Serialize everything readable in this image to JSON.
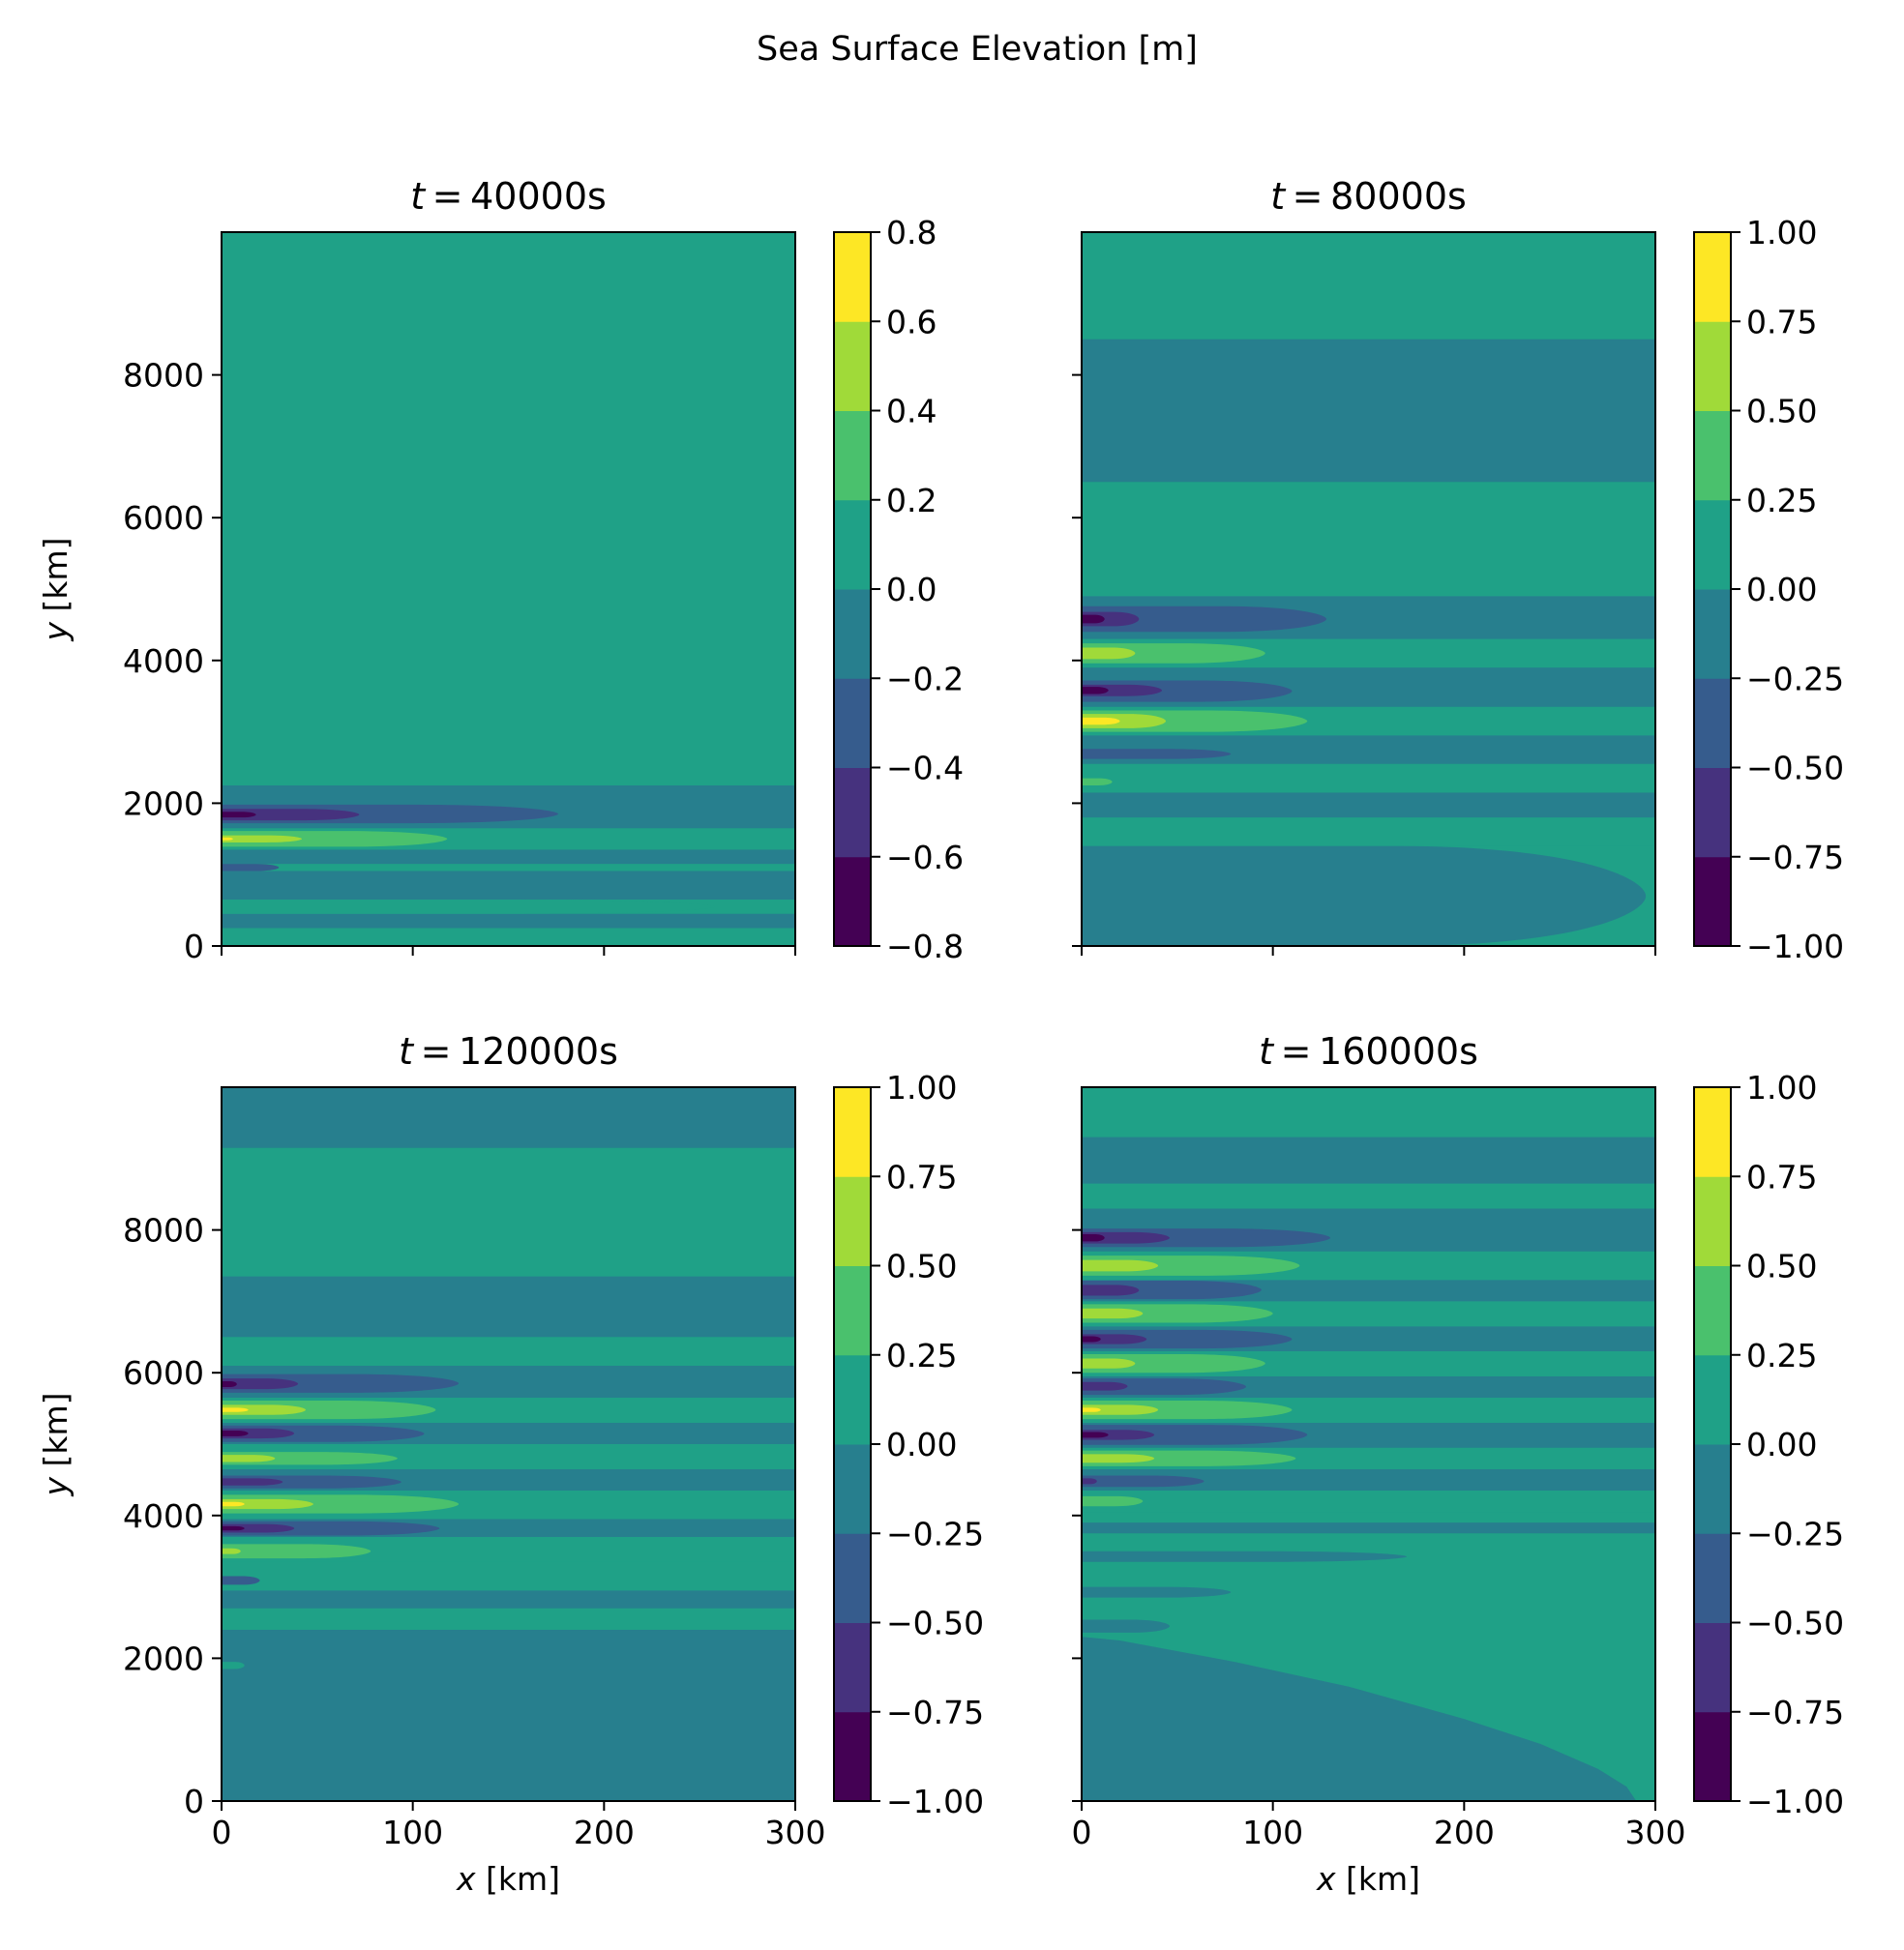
{
  "figure": {
    "suptitle": "Sea Surface Elevation [m]"
  },
  "chart_data": [
    {
      "type": "contour",
      "title_var": "t",
      "title_value": "40000s",
      "xlabel_var": "x",
      "xlabel_unit": "[km]",
      "ylabel_var": "y",
      "ylabel_unit": "[km]",
      "xlim": [
        0,
        300
      ],
      "ylim": [
        0,
        10000
      ],
      "xticks": [
        "0",
        "100",
        "200",
        "300"
      ],
      "yticks": [
        "0",
        "2000",
        "4000",
        "6000",
        "8000"
      ],
      "show_xticklabels": false,
      "show_yticklabels": true,
      "show_xlabel": false,
      "show_ylabel": true,
      "colorbar": {
        "levels": [
          -0.8,
          -0.6,
          -0.4,
          -0.2,
          0.0,
          0.2,
          0.4,
          0.6,
          0.8
        ],
        "ticks": [
          "−0.8",
          "−0.6",
          "−0.4",
          "−0.2",
          "0.0",
          "0.2",
          "0.4",
          "0.6",
          "0.8"
        ],
        "colors": [
          "#440154",
          "#46327e",
          "#365c8d",
          "#277f8e",
          "#1fa187",
          "#4ac16d",
          "#a0da39",
          "#fde725"
        ]
      },
      "background_color": "#1fa187",
      "bands": [
        {
          "y0": 0,
          "y1": 300,
          "x_end": 300,
          "color": "#1fa187"
        },
        {
          "y0": 250,
          "y1": 450,
          "x_end": 300,
          "color": "#277f8e"
        },
        {
          "y0": 450,
          "y1": 650,
          "x_end": 258,
          "color": "#1fa187"
        },
        {
          "y0": 650,
          "y1": 1050,
          "x_end": 300,
          "color": "#277f8e"
        },
        {
          "y0": 1050,
          "y1": 1150,
          "x_end": 30,
          "color": "#365c8d"
        },
        {
          "y0": 1150,
          "y1": 1350,
          "x_end": 300,
          "color": "#277f8e"
        },
        {
          "y0": 1350,
          "y1": 1650,
          "x_end": 300,
          "color": "#1fa187"
        },
        {
          "y0": 1390,
          "y1": 1610,
          "x_end": 118,
          "color": "#4ac16d"
        },
        {
          "y0": 1450,
          "y1": 1550,
          "x_end": 42,
          "color": "#a0da39"
        },
        {
          "y0": 1480,
          "y1": 1520,
          "x_end": 6,
          "color": "#fde725"
        },
        {
          "y0": 1650,
          "y1": 2250,
          "x_end": 300,
          "color": "#277f8e"
        },
        {
          "y0": 1720,
          "y1": 1980,
          "x_end": 176,
          "color": "#365c8d"
        },
        {
          "y0": 1760,
          "y1": 1920,
          "x_end": 72,
          "color": "#46327e"
        },
        {
          "y0": 1800,
          "y1": 1880,
          "x_end": 18,
          "color": "#440154"
        }
      ]
    },
    {
      "type": "contour",
      "title_var": "t",
      "title_value": "80000s",
      "xlabel_var": "x",
      "xlabel_unit": "[km]",
      "ylabel_var": "y",
      "ylabel_unit": "[km]",
      "xlim": [
        0,
        300
      ],
      "ylim": [
        0,
        10000
      ],
      "xticks": [
        "0",
        "100",
        "200",
        "300"
      ],
      "yticks": [
        "0",
        "2000",
        "4000",
        "6000",
        "8000"
      ],
      "show_xticklabels": false,
      "show_yticklabels": false,
      "show_xlabel": false,
      "show_ylabel": false,
      "colorbar": {
        "levels": [
          -1.0,
          -0.75,
          -0.5,
          -0.25,
          0.0,
          0.25,
          0.5,
          0.75,
          1.0
        ],
        "ticks": [
          "−1.00",
          "−0.75",
          "−0.50",
          "−0.25",
          "0.00",
          "0.25",
          "0.50",
          "0.75",
          "1.00"
        ],
        "colors": [
          "#440154",
          "#46327e",
          "#365c8d",
          "#277f8e",
          "#1fa187",
          "#4ac16d",
          "#a0da39",
          "#fde725"
        ]
      },
      "background_color": "#1fa187",
      "bands": [
        {
          "y0": 0,
          "y1": 1400,
          "x_end": 295,
          "color": "#277f8e"
        },
        {
          "y0": 1400,
          "y1": 1800,
          "x_end": 300,
          "color": "#1fa187"
        },
        {
          "y0": 1800,
          "y1": 2150,
          "x_end": 300,
          "color": "#277f8e"
        },
        {
          "y0": 2150,
          "y1": 2550,
          "x_end": 300,
          "color": "#1fa187"
        },
        {
          "y0": 2250,
          "y1": 2350,
          "x_end": 16,
          "color": "#4ac16d"
        },
        {
          "y0": 2550,
          "y1": 2950,
          "x_end": 300,
          "color": "#277f8e"
        },
        {
          "y0": 2620,
          "y1": 2760,
          "x_end": 78,
          "color": "#365c8d"
        },
        {
          "y0": 2950,
          "y1": 3350,
          "x_end": 300,
          "color": "#1fa187"
        },
        {
          "y0": 3000,
          "y1": 3300,
          "x_end": 118,
          "color": "#4ac16d"
        },
        {
          "y0": 3050,
          "y1": 3250,
          "x_end": 44,
          "color": "#a0da39"
        },
        {
          "y0": 3100,
          "y1": 3200,
          "x_end": 20,
          "color": "#fde725"
        },
        {
          "y0": 3350,
          "y1": 3900,
          "x_end": 300,
          "color": "#277f8e"
        },
        {
          "y0": 3420,
          "y1": 3720,
          "x_end": 110,
          "color": "#365c8d"
        },
        {
          "y0": 3500,
          "y1": 3660,
          "x_end": 42,
          "color": "#46327e"
        },
        {
          "y0": 3530,
          "y1": 3630,
          "x_end": 14,
          "color": "#440154"
        },
        {
          "y0": 3900,
          "y1": 4300,
          "x_end": 300,
          "color": "#1fa187"
        },
        {
          "y0": 3960,
          "y1": 4240,
          "x_end": 96,
          "color": "#4ac16d"
        },
        {
          "y0": 4020,
          "y1": 4180,
          "x_end": 28,
          "color": "#a0da39"
        },
        {
          "y0": 4300,
          "y1": 4900,
          "x_end": 300,
          "color": "#277f8e"
        },
        {
          "y0": 4400,
          "y1": 4760,
          "x_end": 128,
          "color": "#365c8d"
        },
        {
          "y0": 4480,
          "y1": 4680,
          "x_end": 30,
          "color": "#46327e"
        },
        {
          "y0": 4520,
          "y1": 4640,
          "x_end": 12,
          "color": "#440154"
        },
        {
          "y0": 6500,
          "y1": 8500,
          "x_end": 300,
          "color": "#277f8e"
        }
      ]
    },
    {
      "type": "contour",
      "title_var": "t",
      "title_value": "120000s",
      "xlabel_var": "x",
      "xlabel_unit": "[km]",
      "ylabel_var": "y",
      "ylabel_unit": "[km]",
      "xlim": [
        0,
        300
      ],
      "ylim": [
        0,
        10000
      ],
      "xticks": [
        "0",
        "100",
        "200",
        "300"
      ],
      "yticks": [
        "0",
        "2000",
        "4000",
        "6000",
        "8000"
      ],
      "show_xticklabels": true,
      "show_yticklabels": true,
      "show_xlabel": true,
      "show_ylabel": true,
      "colorbar": {
        "levels": [
          -1.0,
          -0.75,
          -0.5,
          -0.25,
          0.0,
          0.25,
          0.5,
          0.75,
          1.0
        ],
        "ticks": [
          "−1.00",
          "−0.75",
          "−0.50",
          "−0.25",
          "0.00",
          "0.25",
          "0.50",
          "0.75",
          "1.00"
        ],
        "colors": [
          "#440154",
          "#46327e",
          "#365c8d",
          "#277f8e",
          "#1fa187",
          "#4ac16d",
          "#a0da39",
          "#fde725"
        ]
      },
      "background_color": "#1fa187",
      "bands": [
        {
          "y0": 0,
          "y1": 2400,
          "x_end": 300,
          "color": "#277f8e"
        },
        {
          "y0": 1850,
          "y1": 1950,
          "x_end": 12,
          "color": "#1fa187"
        },
        {
          "y0": 2400,
          "y1": 2700,
          "x_end": 300,
          "color": "#1fa187"
        },
        {
          "y0": 2700,
          "y1": 2950,
          "x_end": 300,
          "color": "#277f8e"
        },
        {
          "y0": 2950,
          "y1": 3350,
          "x_end": 300,
          "color": "#1fa187"
        },
        {
          "y0": 3030,
          "y1": 3150,
          "x_end": 20,
          "color": "#365c8d"
        },
        {
          "y0": 3350,
          "y1": 3700,
          "x_end": 300,
          "color": "#1fa187"
        },
        {
          "y0": 3400,
          "y1": 3600,
          "x_end": 78,
          "color": "#4ac16d"
        },
        {
          "y0": 3460,
          "y1": 3540,
          "x_end": 10,
          "color": "#a0da39"
        },
        {
          "y0": 3700,
          "y1": 3950,
          "x_end": 300,
          "color": "#277f8e"
        },
        {
          "y0": 3720,
          "y1": 3920,
          "x_end": 114,
          "color": "#365c8d"
        },
        {
          "y0": 3760,
          "y1": 3880,
          "x_end": 38,
          "color": "#46327e"
        },
        {
          "y0": 3790,
          "y1": 3850,
          "x_end": 12,
          "color": "#440154"
        },
        {
          "y0": 3950,
          "y1": 4350,
          "x_end": 300,
          "color": "#1fa187"
        },
        {
          "y0": 4030,
          "y1": 4290,
          "x_end": 124,
          "color": "#4ac16d"
        },
        {
          "y0": 4090,
          "y1": 4230,
          "x_end": 48,
          "color": "#a0da39"
        },
        {
          "y0": 4130,
          "y1": 4190,
          "x_end": 12,
          "color": "#fde725"
        },
        {
          "y0": 4350,
          "y1": 4650,
          "x_end": 300,
          "color": "#277f8e"
        },
        {
          "y0": 4380,
          "y1": 4560,
          "x_end": 94,
          "color": "#365c8d"
        },
        {
          "y0": 4420,
          "y1": 4520,
          "x_end": 32,
          "color": "#46327e"
        },
        {
          "y0": 4650,
          "y1": 5000,
          "x_end": 300,
          "color": "#1fa187"
        },
        {
          "y0": 4710,
          "y1": 4890,
          "x_end": 92,
          "color": "#4ac16d"
        },
        {
          "y0": 4750,
          "y1": 4850,
          "x_end": 28,
          "color": "#a0da39"
        },
        {
          "y0": 5000,
          "y1": 5300,
          "x_end": 300,
          "color": "#277f8e"
        },
        {
          "y0": 5030,
          "y1": 5260,
          "x_end": 106,
          "color": "#365c8d"
        },
        {
          "y0": 5080,
          "y1": 5220,
          "x_end": 38,
          "color": "#46327e"
        },
        {
          "y0": 5110,
          "y1": 5190,
          "x_end": 14,
          "color": "#440154"
        },
        {
          "y0": 5300,
          "y1": 5650,
          "x_end": 300,
          "color": "#1fa187"
        },
        {
          "y0": 5350,
          "y1": 5610,
          "x_end": 112,
          "color": "#4ac16d"
        },
        {
          "y0": 5410,
          "y1": 5550,
          "x_end": 44,
          "color": "#a0da39"
        },
        {
          "y0": 5450,
          "y1": 5510,
          "x_end": 14,
          "color": "#fde725"
        },
        {
          "y0": 5650,
          "y1": 6100,
          "x_end": 300,
          "color": "#277f8e"
        },
        {
          "y0": 5720,
          "y1": 5980,
          "x_end": 124,
          "color": "#365c8d"
        },
        {
          "y0": 5770,
          "y1": 5920,
          "x_end": 40,
          "color": "#46327e"
        },
        {
          "y0": 5800,
          "y1": 5880,
          "x_end": 8,
          "color": "#440154"
        },
        {
          "y0": 6100,
          "y1": 6500,
          "x_end": 300,
          "color": "#1fa187"
        },
        {
          "y0": 6500,
          "y1": 7350,
          "x_end": 300,
          "color": "#277f8e"
        },
        {
          "y0": 9150,
          "y1": 10000,
          "x_end": 300,
          "color": "#277f8e"
        }
      ]
    },
    {
      "type": "contour",
      "title_var": "t",
      "title_value": "160000s",
      "xlabel_var": "x",
      "xlabel_unit": "[km]",
      "ylabel_var": "y",
      "ylabel_unit": "[km]",
      "xlim": [
        0,
        300
      ],
      "ylim": [
        0,
        10000
      ],
      "xticks": [
        "0",
        "100",
        "200",
        "300"
      ],
      "yticks": [
        "0",
        "2000",
        "4000",
        "6000",
        "8000"
      ],
      "show_xticklabels": true,
      "show_yticklabels": false,
      "show_xlabel": true,
      "show_ylabel": false,
      "colorbar": {
        "levels": [
          -1.0,
          -0.75,
          -0.5,
          -0.25,
          0.0,
          0.25,
          0.5,
          0.75,
          1.0
        ],
        "ticks": [
          "−1.00",
          "−0.75",
          "−0.50",
          "−0.25",
          "0.00",
          "0.25",
          "0.50",
          "0.75",
          "1.00"
        ],
        "colors": [
          "#440154",
          "#46327e",
          "#365c8d",
          "#277f8e",
          "#1fa187",
          "#4ac16d",
          "#a0da39",
          "#fde725"
        ]
      },
      "background_color": "#1fa187",
      "wedge": {
        "color": "#277f8e",
        "points": [
          [
            0,
            0
          ],
          [
            290,
            0
          ],
          [
            285,
            200
          ],
          [
            270,
            450
          ],
          [
            240,
            800
          ],
          [
            200,
            1150
          ],
          [
            140,
            1600
          ],
          [
            80,
            1950
          ],
          [
            20,
            2250
          ],
          [
            0,
            2300
          ]
        ]
      },
      "bands": [
        {
          "y0": 2360,
          "y1": 2540,
          "x_end": 46,
          "color": "#277f8e"
        },
        {
          "y0": 2850,
          "y1": 3000,
          "x_end": 78,
          "color": "#277f8e"
        },
        {
          "y0": 3350,
          "y1": 3500,
          "x_end": 170,
          "color": "#277f8e"
        },
        {
          "y0": 3750,
          "y1": 3900,
          "x_end": 300,
          "color": "#277f8e"
        },
        {
          "y0": 4050,
          "y1": 4350,
          "x_end": 300,
          "color": "#1fa187"
        },
        {
          "y0": 4130,
          "y1": 4270,
          "x_end": 32,
          "color": "#4ac16d"
        },
        {
          "y0": 4350,
          "y1": 4650,
          "x_end": 300,
          "color": "#277f8e"
        },
        {
          "y0": 4400,
          "y1": 4560,
          "x_end": 64,
          "color": "#365c8d"
        },
        {
          "y0": 4440,
          "y1": 4520,
          "x_end": 8,
          "color": "#46327e"
        },
        {
          "y0": 4650,
          "y1": 4950,
          "x_end": 300,
          "color": "#1fa187"
        },
        {
          "y0": 4690,
          "y1": 4910,
          "x_end": 112,
          "color": "#4ac16d"
        },
        {
          "y0": 4740,
          "y1": 4860,
          "x_end": 38,
          "color": "#a0da39"
        },
        {
          "y0": 4950,
          "y1": 5300,
          "x_end": 300,
          "color": "#277f8e"
        },
        {
          "y0": 4990,
          "y1": 5270,
          "x_end": 118,
          "color": "#365c8d"
        },
        {
          "y0": 5060,
          "y1": 5200,
          "x_end": 38,
          "color": "#46327e"
        },
        {
          "y0": 5090,
          "y1": 5170,
          "x_end": 14,
          "color": "#440154"
        },
        {
          "y0": 5300,
          "y1": 5650,
          "x_end": 300,
          "color": "#1fa187"
        },
        {
          "y0": 5350,
          "y1": 5610,
          "x_end": 110,
          "color": "#4ac16d"
        },
        {
          "y0": 5410,
          "y1": 5550,
          "x_end": 40,
          "color": "#a0da39"
        },
        {
          "y0": 5450,
          "y1": 5510,
          "x_end": 10,
          "color": "#fde725"
        },
        {
          "y0": 5650,
          "y1": 5950,
          "x_end": 300,
          "color": "#277f8e"
        },
        {
          "y0": 5690,
          "y1": 5920,
          "x_end": 86,
          "color": "#365c8d"
        },
        {
          "y0": 5750,
          "y1": 5870,
          "x_end": 24,
          "color": "#46327e"
        },
        {
          "y0": 5950,
          "y1": 6300,
          "x_end": 300,
          "color": "#1fa187"
        },
        {
          "y0": 6000,
          "y1": 6260,
          "x_end": 96,
          "color": "#4ac16d"
        },
        {
          "y0": 6060,
          "y1": 6200,
          "x_end": 28,
          "color": "#a0da39"
        },
        {
          "y0": 6300,
          "y1": 6650,
          "x_end": 300,
          "color": "#277f8e"
        },
        {
          "y0": 6340,
          "y1": 6600,
          "x_end": 110,
          "color": "#365c8d"
        },
        {
          "y0": 6400,
          "y1": 6540,
          "x_end": 34,
          "color": "#46327e"
        },
        {
          "y0": 6430,
          "y1": 6510,
          "x_end": 10,
          "color": "#440154"
        },
        {
          "y0": 6650,
          "y1": 7000,
          "x_end": 300,
          "color": "#1fa187"
        },
        {
          "y0": 6700,
          "y1": 6960,
          "x_end": 100,
          "color": "#4ac16d"
        },
        {
          "y0": 6760,
          "y1": 6900,
          "x_end": 32,
          "color": "#a0da39"
        },
        {
          "y0": 7000,
          "y1": 7300,
          "x_end": 300,
          "color": "#277f8e"
        },
        {
          "y0": 7030,
          "y1": 7290,
          "x_end": 94,
          "color": "#365c8d"
        },
        {
          "y0": 7080,
          "y1": 7230,
          "x_end": 30,
          "color": "#46327e"
        },
        {
          "y0": 7300,
          "y1": 7700,
          "x_end": 300,
          "color": "#1fa187"
        },
        {
          "y0": 7360,
          "y1": 7640,
          "x_end": 114,
          "color": "#4ac16d"
        },
        {
          "y0": 7420,
          "y1": 7580,
          "x_end": 40,
          "color": "#a0da39"
        },
        {
          "y0": 7700,
          "y1": 8300,
          "x_end": 300,
          "color": "#277f8e"
        },
        {
          "y0": 7760,
          "y1": 8020,
          "x_end": 130,
          "color": "#365c8d"
        },
        {
          "y0": 7810,
          "y1": 7970,
          "x_end": 46,
          "color": "#46327e"
        },
        {
          "y0": 7840,
          "y1": 7940,
          "x_end": 12,
          "color": "#440154"
        },
        {
          "y0": 8300,
          "y1": 8650,
          "x_end": 300,
          "color": "#1fa187"
        },
        {
          "y0": 8650,
          "y1": 9300,
          "x_end": 300,
          "color": "#277f8e"
        }
      ]
    }
  ]
}
